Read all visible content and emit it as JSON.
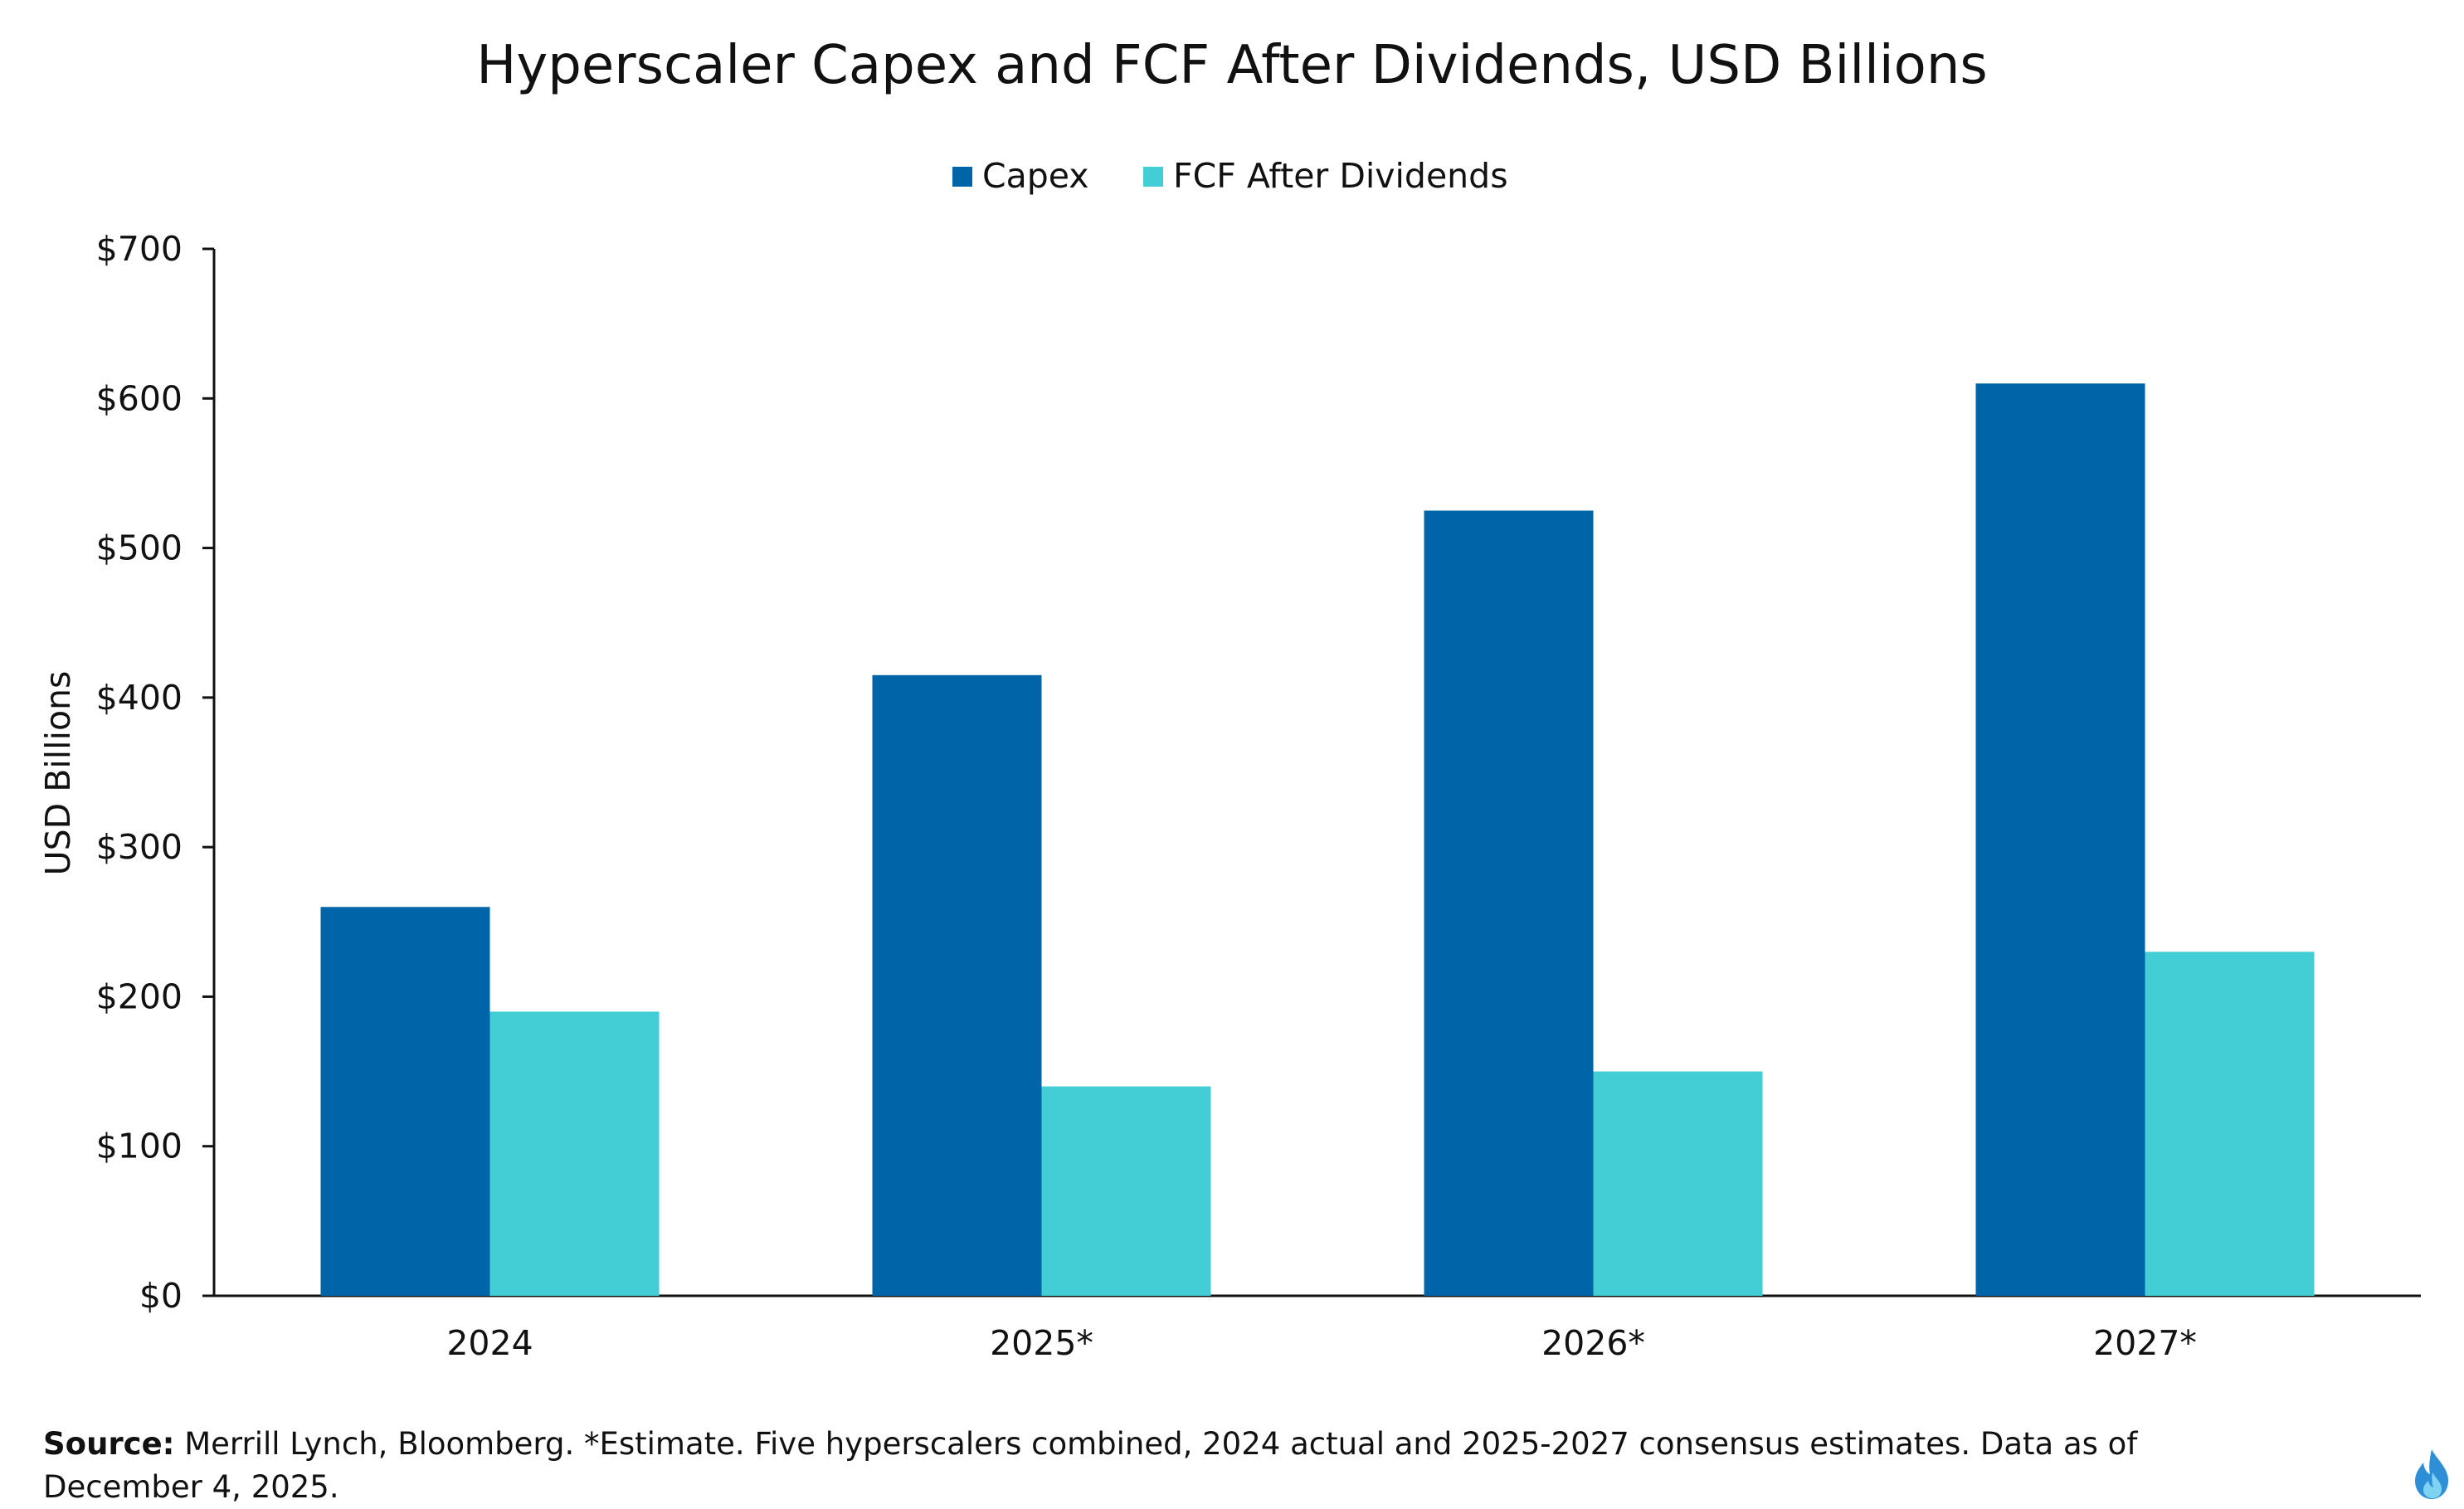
{
  "chart_data": {
    "type": "bar",
    "title": "Hyperscaler Capex and FCF After Dividends, USD Billions",
    "categories": [
      "2024",
      "2025*",
      "2026*",
      "2027*"
    ],
    "series": [
      {
        "name": "Capex",
        "color": "#0065A8",
        "values": [
          260,
          415,
          525,
          610
        ]
      },
      {
        "name": "FCF After Dividends",
        "color": "#43CED5",
        "values": [
          190,
          140,
          150,
          230
        ]
      }
    ],
    "xlabel": "",
    "ylabel": "USD Billions",
    "ylim": [
      0,
      700
    ],
    "yticks": [
      0,
      100,
      200,
      300,
      400,
      500,
      600,
      700
    ],
    "ytick_labels": [
      "$0",
      "$100",
      "$200",
      "$300",
      "$400",
      "$500",
      "$600",
      "$700"
    ],
    "legend_position": "top-center",
    "grid": false
  },
  "footnote": {
    "source_label": "Source:",
    "text": "Merrill Lynch, Bloomberg. *Estimate. Five hyperscalers combined, 2024 actual and 2025-2027 consensus estimates. Data as of December 4, 2025."
  },
  "logo_icon": "flame-logo-icon"
}
